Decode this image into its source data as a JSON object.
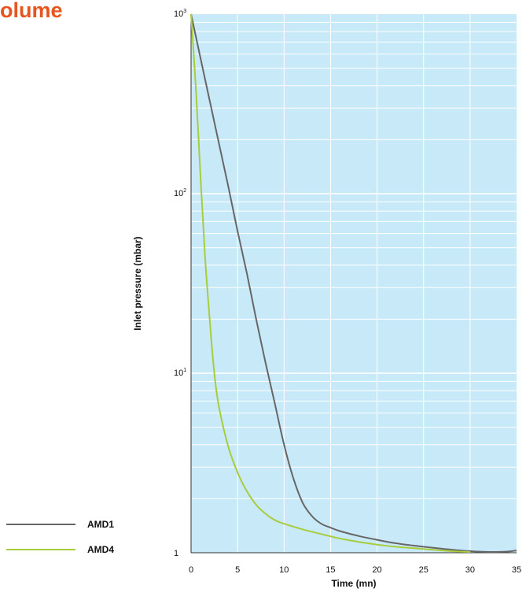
{
  "heading": {
    "text": "olume",
    "color": "#e8541e"
  },
  "chart_data": {
    "type": "line",
    "title": "",
    "xlabel": "Time (mn)",
    "ylabel": "Inlet pressure (mbar)",
    "y_scale": "log",
    "xlim": [
      0,
      35
    ],
    "ylim": [
      1,
      1000
    ],
    "xticks": [
      0,
      5,
      10,
      15,
      20,
      25,
      30,
      35
    ],
    "yticks": [
      {
        "value": 1,
        "base": "1",
        "exp": ""
      },
      {
        "value": 10,
        "base": "10",
        "exp": "1"
      },
      {
        "value": 100,
        "base": "10",
        "exp": "2"
      },
      {
        "value": 1000,
        "base": "10",
        "exp": "3"
      }
    ],
    "grid": true,
    "plot_background": "#c8e9f8",
    "legend_position": "bottom-left",
    "series": [
      {
        "name": "AMD1",
        "color": "#666666",
        "x": [
          0,
          2,
          4,
          5,
          6,
          7,
          8,
          9,
          10,
          11,
          12,
          13,
          14,
          15,
          16,
          18,
          20,
          22,
          25,
          28,
          30,
          32,
          34,
          35
        ],
        "y": [
          1000,
          330,
          110,
          62,
          36,
          20,
          11.5,
          6.8,
          4.0,
          2.6,
          1.9,
          1.6,
          1.45,
          1.38,
          1.32,
          1.24,
          1.18,
          1.13,
          1.08,
          1.04,
          1.02,
          1.01,
          1.015,
          1.03
        ]
      },
      {
        "name": "AMD4",
        "color": "#a8cc3c",
        "x": [
          0,
          0.5,
          1,
          1.5,
          2,
          2.5,
          3,
          4,
          5,
          6,
          7,
          8,
          9,
          10,
          12,
          14,
          16,
          18,
          20,
          22,
          25,
          28,
          30
        ],
        "y": [
          1000,
          400,
          130,
          45,
          20,
          10,
          6.5,
          3.9,
          2.8,
          2.2,
          1.85,
          1.65,
          1.52,
          1.45,
          1.35,
          1.27,
          1.2,
          1.15,
          1.11,
          1.08,
          1.05,
          1.02,
          1.01
        ]
      }
    ]
  }
}
